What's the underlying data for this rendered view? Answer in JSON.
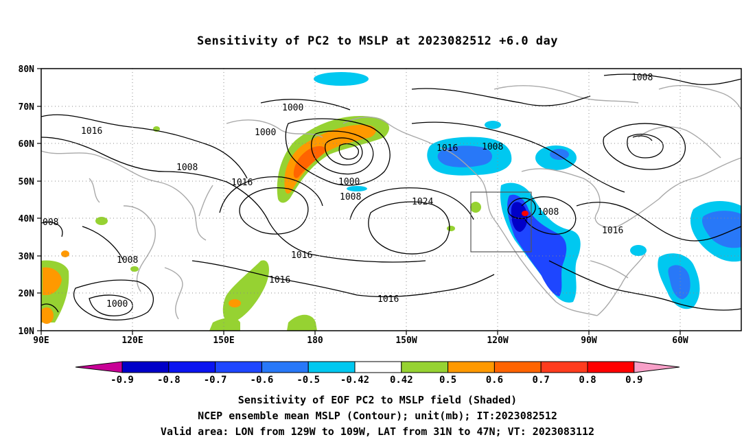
{
  "title": "Sensitivity of PC2 to MSLP at 2023082512 +6.0 day",
  "map": {
    "lon_range": [
      90,
      305
    ],
    "lat_range": [
      10,
      80
    ],
    "lat_ticks": [
      "80N",
      "70N",
      "60N",
      "50N",
      "40N",
      "30N",
      "20N",
      "10N"
    ],
    "lon_ticks": [
      "90E",
      "120E",
      "150E",
      "180",
      "150W",
      "120W",
      "90W",
      "60W"
    ],
    "grid": "dotted",
    "contour_labels": [
      "1016",
      "1000",
      "1000",
      "1008",
      "1016",
      "1000",
      "1008",
      "1024",
      "1016",
      "1008",
      "1016",
      "1008",
      "1016",
      "1016",
      "1008",
      "008",
      "1008",
      "1000",
      "1016"
    ],
    "valid_area": {
      "lon": [
        231,
        251
      ],
      "lat": [
        31,
        47
      ]
    }
  },
  "colorbar": {
    "labels": [
      "-0.9",
      "-0.8",
      "-0.7",
      "-0.6",
      "-0.5",
      "-0.42",
      "0.42",
      "0.5",
      "0.6",
      "0.7",
      "0.8",
      "0.9"
    ],
    "colors": [
      "#0000c8",
      "#0a14f0",
      "#1e46ff",
      "#2878f8",
      "#00c8f0",
      "#ffffff",
      "#96d232",
      "#ff9900",
      "#ff6400",
      "#ff3c1e",
      "#ff0000"
    ],
    "end_low": "#c80096",
    "end_high": "#f8a0c8"
  },
  "captions": [
    "Sensitivity of EOF PC2 to MSLP field (Shaded)",
    "NCEP ensemble mean MSLP (Contour); unit(mb); IT:2023082512",
    "Valid area: LON from 129W to 109W, LAT from 31N to 47N; VT: 2023083112"
  ]
}
